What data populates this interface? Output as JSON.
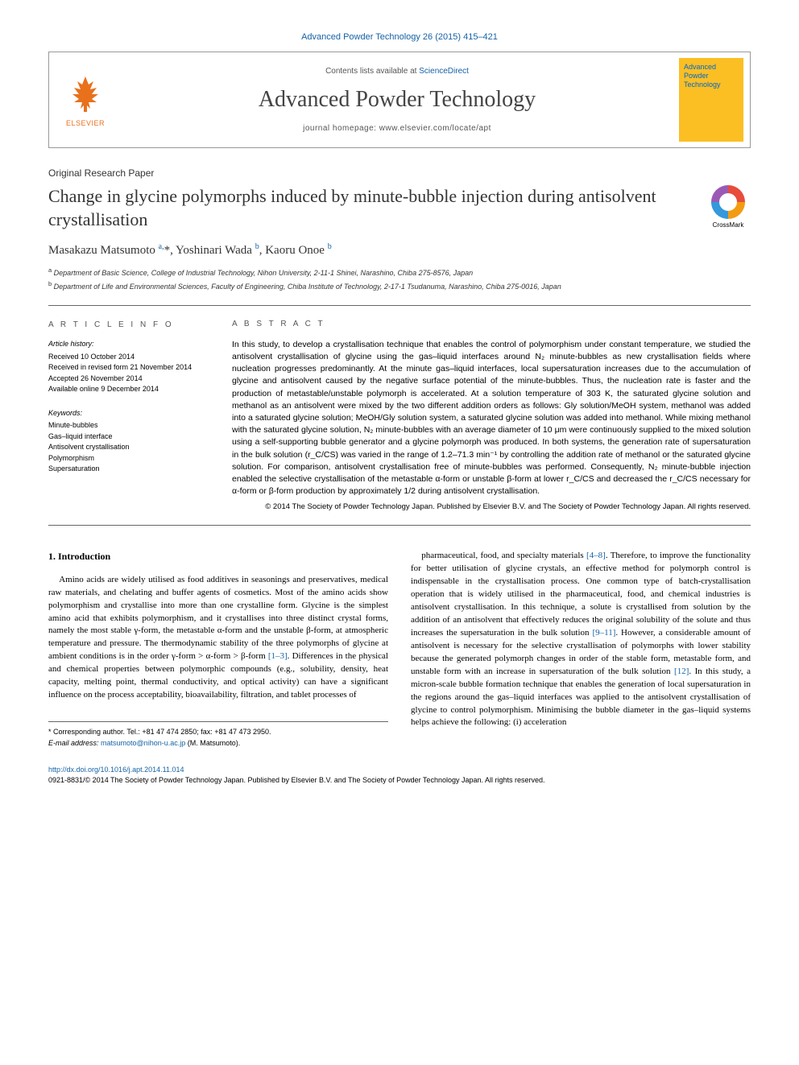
{
  "citation": "Advanced Powder Technology 26 (2015) 415–421",
  "header": {
    "contents_prefix": "Contents lists available at ",
    "contents_link": "ScienceDirect",
    "journal_title": "Advanced Powder Technology",
    "homepage_prefix": "journal homepage: ",
    "homepage_url": "www.elsevier.com/locate/apt",
    "elsevier_label": "ELSEVIER",
    "cover_line1": "Advanced",
    "cover_line2": "Powder",
    "cover_line3": "Technology"
  },
  "article": {
    "type": "Original Research Paper",
    "title": "Change in glycine polymorphs induced by minute-bubble injection during antisolvent crystallisation",
    "crossmark_label": "CrossMark",
    "authors_html": "Masakazu Matsumoto <sup>a,</sup>*, Yoshinari Wada <sup>b</sup>, Kaoru Onoe <sup>b</sup>",
    "affiliations": [
      {
        "sup": "a",
        "text": "Department of Basic Science, College of Industrial Technology, Nihon University, 2-11-1 Shinei, Narashino, Chiba 275-8576, Japan"
      },
      {
        "sup": "b",
        "text": "Department of Life and Environmental Sciences, Faculty of Engineering, Chiba Institute of Technology, 2-17-1 Tsudanuma, Narashino, Chiba 275-0016, Japan"
      }
    ]
  },
  "info": {
    "heading": "A R T I C L E   I N F O",
    "history_label": "Article history:",
    "history": [
      "Received 10 October 2014",
      "Received in revised form 21 November 2014",
      "Accepted 26 November 2014",
      "Available online 9 December 2014"
    ],
    "keywords_label": "Keywords:",
    "keywords": [
      "Minute-bubbles",
      "Gas–liquid interface",
      "Antisolvent crystallisation",
      "Polymorphism",
      "Supersaturation"
    ]
  },
  "abstract": {
    "heading": "A B S T R A C T",
    "text": "In this study, to develop a crystallisation technique that enables the control of polymorphism under constant temperature, we studied the antisolvent crystallisation of glycine using the gas–liquid interfaces around N₂ minute-bubbles as new crystallisation fields where nucleation progresses predominantly. At the minute gas–liquid interfaces, local supersaturation increases due to the accumulation of glycine and antisolvent caused by the negative surface potential of the minute-bubbles. Thus, the nucleation rate is faster and the production of metastable/unstable polymorph is accelerated. At a solution temperature of 303 K, the saturated glycine solution and methanol as an antisolvent were mixed by the two different addition orders as follows: Gly solution/MeOH system, methanol was added into a saturated glycine solution; MeOH/Gly solution system, a saturated glycine solution was added into methanol. While mixing methanol with the saturated glycine solution, N₂ minute-bubbles with an average diameter of 10 μm were continuously supplied to the mixed solution using a self-supporting bubble generator and a glycine polymorph was produced. In both systems, the generation rate of supersaturation in the bulk solution (r_C/CS) was varied in the range of 1.2–71.3 min⁻¹ by controlling the addition rate of methanol or the saturated glycine solution. For comparison, antisolvent crystallisation free of minute-bubbles was performed. Consequently, N₂ minute-bubble injection enabled the selective crystallisation of the metastable α-form or unstable β-form at lower r_C/CS and decreased the r_C/CS necessary for α-form or β-form production by approximately 1/2 during antisolvent crystallisation.",
    "copyright": "© 2014 The Society of Powder Technology Japan. Published by Elsevier B.V. and The Society of Powder Technology Japan. All rights reserved."
  },
  "body": {
    "section_heading": "1. Introduction",
    "col1": "Amino acids are widely utilised as food additives in seasonings and preservatives, medical raw materials, and chelating and buffer agents of cosmetics. Most of the amino acids show polymorphism and crystallise into more than one crystalline form. Glycine is the simplest amino acid that exhibits polymorphism, and it crystallises into three distinct crystal forms, namely the most stable γ-form, the metastable α-form and the unstable β-form, at atmospheric temperature and pressure. The thermodynamic stability of the three polymorphs of glycine at ambient conditions is in the order γ-form > α-form > β-form [1–3]. Differences in the physical and chemical properties between polymorphic compounds (e.g., solubility, density, heat capacity, melting point, thermal conductivity, and optical activity) can have a significant influence on the process acceptability, bioavailability, filtration, and tablet processes of",
    "col1_link": "[1–3]",
    "col2_pre": "pharmaceutical, food, and specialty materials ",
    "col2_link1": "[4–8]",
    "col2_mid1": ". Therefore, to improve the functionality for better utilisation of glycine crystals, an effective method for polymorph control is indispensable in the crystallisation process. One common type of batch-crystallisation operation that is widely utilised in the pharmaceutical, food, and chemical industries is antisolvent crystallisation. In this technique, a solute is crystallised from solution by the addition of an antisolvent that effectively reduces the original solubility of the solute and thus increases the supersaturation in the bulk solution ",
    "col2_link2": "[9–11]",
    "col2_mid2": ". However, a considerable amount of antisolvent is necessary for the selective crystallisation of polymorphs with lower stability because the generated polymorph changes in order of the stable form, metastable form, and unstable form with an increase in supersaturation of the bulk solution ",
    "col2_link3": "[12]",
    "col2_end": ". In this study, a micron-scale bubble formation technique that enables the generation of local supersaturation in the regions around the gas–liquid interfaces was applied to the antisolvent crystallisation of glycine to control polymorphism. Minimising the bubble diameter in the gas–liquid systems helps achieve the following: (i) acceleration"
  },
  "footnote": {
    "corr": "* Corresponding author. Tel.: +81 47 474 2850; fax: +81 47 473 2950.",
    "email_label": "E-mail address: ",
    "email": "matsumoto@nihon-u.ac.jp",
    "email_suffix": " (M. Matsumoto)."
  },
  "footer": {
    "doi": "http://dx.doi.org/10.1016/j.apt.2014.11.014",
    "issn_line": "0921-8831/© 2014 The Society of Powder Technology Japan. Published by Elsevier B.V. and The Society of Powder Technology Japan. All rights reserved."
  }
}
